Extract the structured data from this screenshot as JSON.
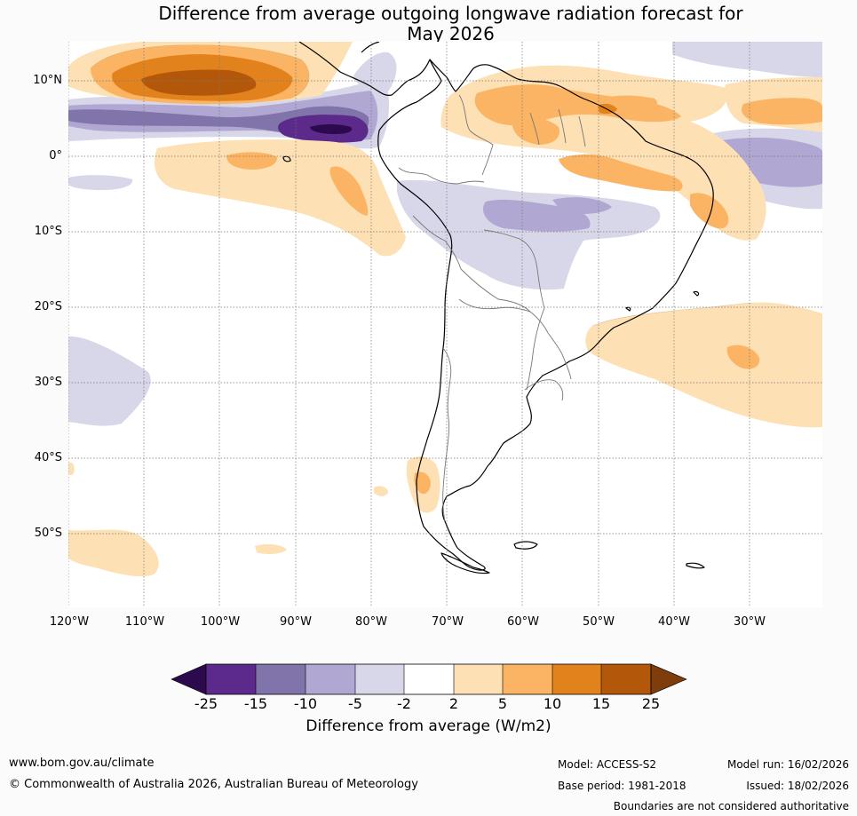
{
  "title": {
    "line1": "Difference from average outgoing longwave radiation forecast for",
    "line2": "May 2026"
  },
  "map": {
    "lat_labels": [
      "10°N",
      "0°",
      "10°S",
      "20°S",
      "30°S",
      "40°S",
      "50°S"
    ],
    "lon_labels": [
      "120°W",
      "110°W",
      "100°W",
      "90°W",
      "80°W",
      "70°W",
      "60°W",
      "50°W",
      "40°W",
      "30°W"
    ],
    "extent": {
      "lon_min": -120.0,
      "lon_max": -20.5,
      "lat_min": -60.0,
      "lat_max": 15.0
    }
  },
  "colorbar": {
    "ticks": [
      "-25",
      "-15",
      "-10",
      "-5",
      "-2",
      "2",
      "5",
      "10",
      "15",
      "25"
    ],
    "colors": [
      "#2d0a4e",
      "#5b2a8a",
      "#8174ab",
      "#b0a8d2",
      "#d8d7ea",
      "#ffffff",
      "#fde0b4",
      "#fbb463",
      "#e1821c",
      "#b3580a",
      "#7e3d0a"
    ],
    "label": "Difference from average (W/m2)"
  },
  "footer": {
    "website": "www.bom.gov.au/climate",
    "copyright": "© Commonwealth of Australia 2026, Australian Bureau of Meteorology",
    "model": "Model: ACCESS-S2",
    "base_period": "Base period: 1981-2018",
    "model_run": "Model run: 16/02/2026",
    "issued": "Issued: 18/02/2026",
    "disclaimer": "Boundaries are not considered authoritative"
  }
}
